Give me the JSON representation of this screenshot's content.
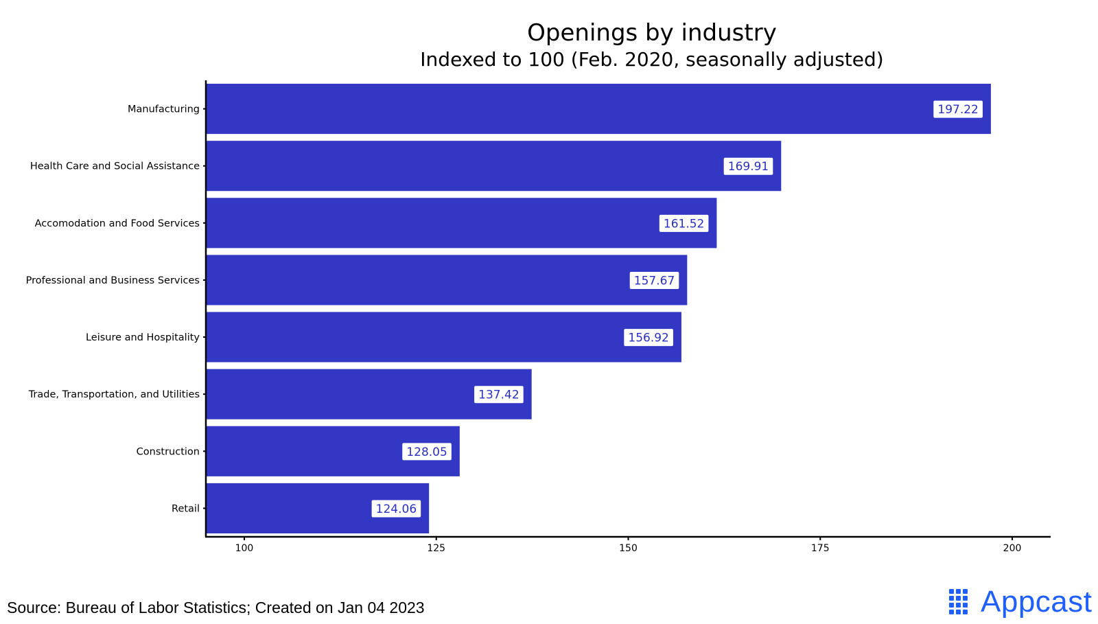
{
  "chart_data": {
    "type": "bar",
    "orientation": "horizontal",
    "title": "Openings by industry",
    "subtitle": "Indexed to 100 (Feb. 2020, seasonally adjusted)",
    "categories": [
      "Manufacturing",
      "Health Care and Social Assistance",
      "Accomodation and Food Services",
      "Professional and Business Services",
      "Leisure and Hospitality",
      "Trade, Transportation, and Utilities",
      "Construction",
      "Retail"
    ],
    "values": [
      197.22,
      169.91,
      161.52,
      157.67,
      156.92,
      137.42,
      128.05,
      124.06
    ],
    "data_labels": [
      "197.22",
      "169.91",
      "161.52",
      "157.67",
      "156.92",
      "137.42",
      "128.05",
      "124.06"
    ],
    "xlim": [
      95,
      205
    ],
    "xticks": [
      "100",
      "125",
      "150",
      "175",
      "200"
    ],
    "xtick_values": [
      100,
      125,
      150,
      175,
      200
    ],
    "bar_color": "#3237c4",
    "label_text_color": "#2a2fc0",
    "grid": false,
    "xlabel": "",
    "ylabel": ""
  },
  "caption": "Source: Bureau of Labor Statistics; Created on Jan 04 2023",
  "logo": {
    "text": "Appcast",
    "tm": "™",
    "color": "#1f5fff"
  }
}
